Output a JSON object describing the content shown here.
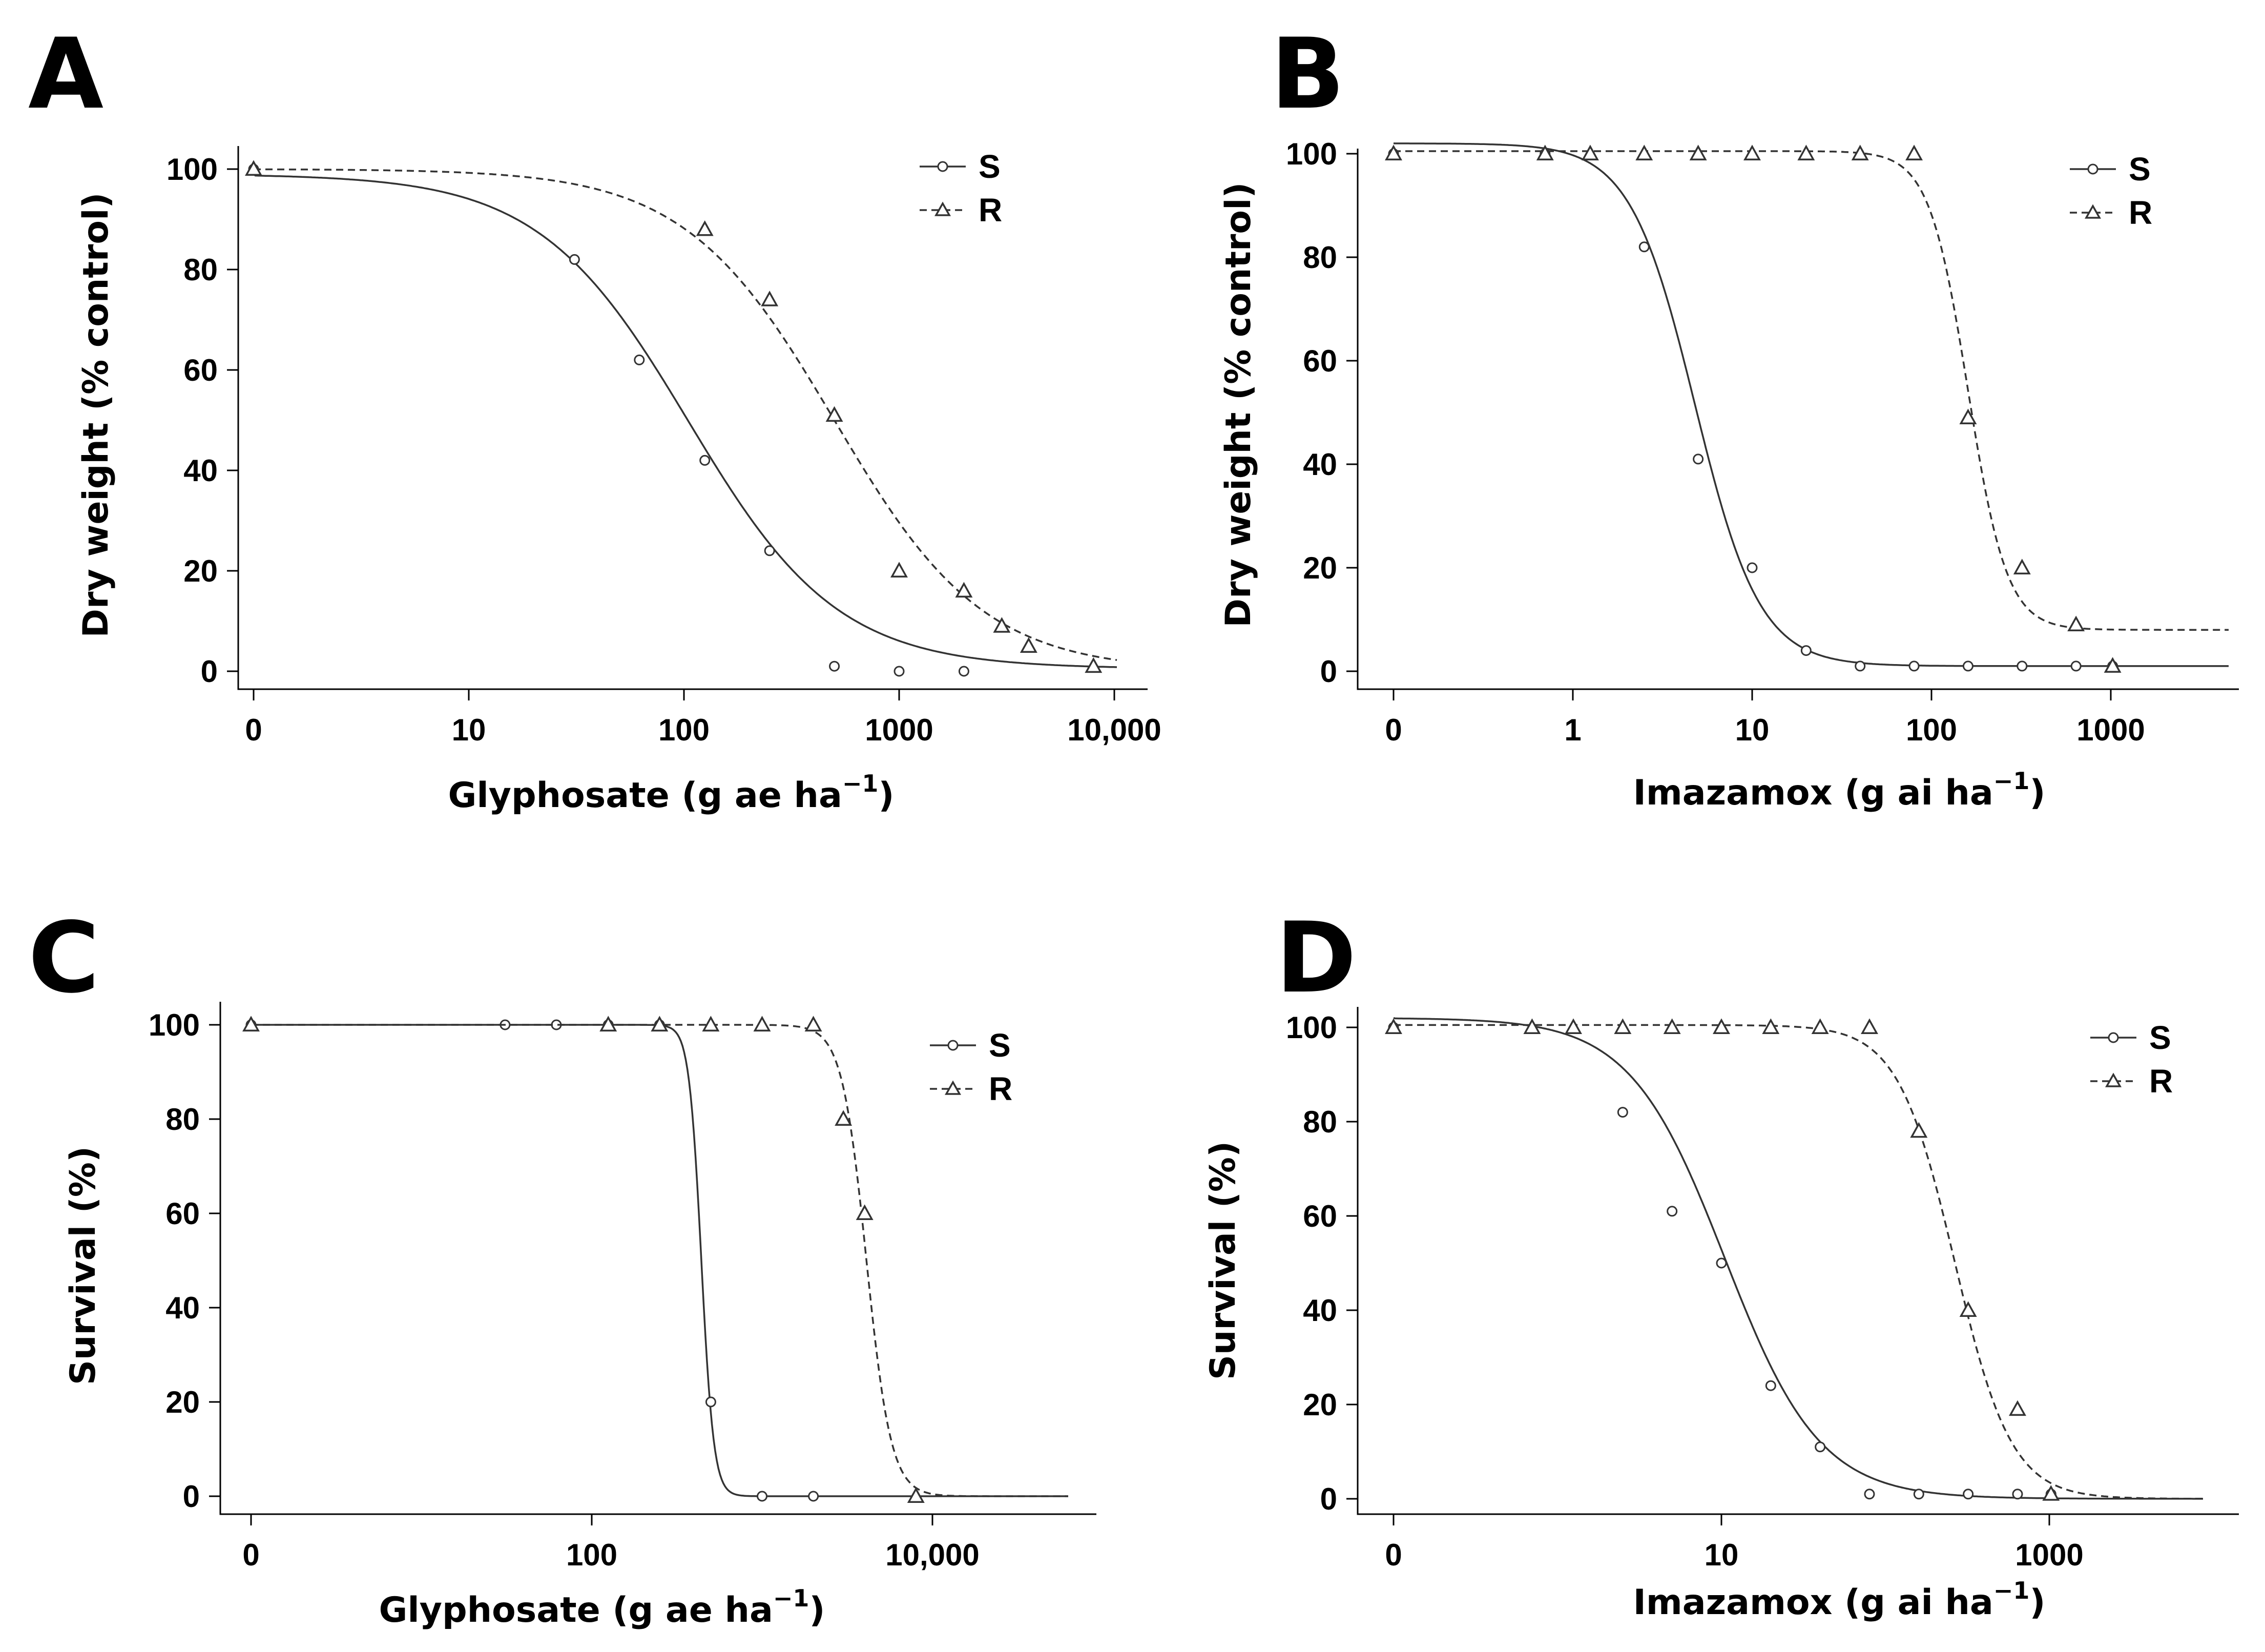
{
  "chart_data": [
    {
      "type": "line",
      "panel": "A",
      "xlabel": "Glyphosate (g ae ha",
      "xlabel_sup": "−1",
      "xlabel_end": ")",
      "ylabel": "Dry weight (% control)",
      "x_scale": "log-with-zero",
      "xticks": [
        {
          "value": 0,
          "label": "0"
        },
        {
          "value": 10,
          "label": "10"
        },
        {
          "value": 100,
          "label": "100"
        },
        {
          "value": 1000,
          "label": "1000"
        },
        {
          "value": 10000,
          "label": "10,000"
        }
      ],
      "xlim": [
        0,
        16000
      ],
      "ylim": [
        -3,
        104
      ],
      "yticks": [
        0,
        20,
        40,
        60,
        80,
        100
      ],
      "legend": [
        "S",
        "R"
      ],
      "legend_position": "top-right",
      "series": [
        {
          "name": "S",
          "marker": "circle",
          "line": "solid",
          "points": [
            [
              0,
              100
            ],
            [
              31,
              82
            ],
            [
              62,
              62
            ],
            [
              125,
              42
            ],
            [
              250,
              24
            ],
            [
              500,
              1
            ],
            [
              1000,
              0
            ],
            [
              2000,
              0
            ]
          ],
          "curve": {
            "top": 99,
            "bottom": 0.5,
            "ed50": 105,
            "slope": 1.25
          }
        },
        {
          "name": "R",
          "marker": "triangle",
          "line": "dashed",
          "points": [
            [
              0,
              100
            ],
            [
              125,
              88
            ],
            [
              250,
              74
            ],
            [
              500,
              51
            ],
            [
              1000,
              20
            ],
            [
              2000,
              16
            ],
            [
              3000,
              9
            ],
            [
              4000,
              5
            ],
            [
              8000,
              1
            ]
          ],
          "curve": {
            "top": 100,
            "bottom": 0,
            "ed50": 500,
            "slope": 1.25
          }
        }
      ]
    },
    {
      "type": "line",
      "panel": "B",
      "xlabel": "Imazamox (g ai ha",
      "xlabel_sup": "−1",
      "xlabel_end": ")",
      "ylabel": "Dry weight (% control)",
      "x_scale": "log-with-zero",
      "xticks": [
        {
          "value": 0,
          "label": "0"
        },
        {
          "value": 1,
          "label": "1"
        },
        {
          "value": 10,
          "label": "10"
        },
        {
          "value": 100,
          "label": "100"
        },
        {
          "value": 1000,
          "label": "1000"
        }
      ],
      "xlim": [
        0,
        5000
      ],
      "ylim": [
        -3,
        104
      ],
      "yticks": [
        0,
        20,
        40,
        60,
        80,
        100
      ],
      "legend": [
        "S",
        "R"
      ],
      "legend_position": "top-right",
      "series": [
        {
          "name": "S",
          "marker": "circle",
          "line": "solid",
          "points": [
            [
              0,
              100
            ],
            [
              0.7,
              100
            ],
            [
              2.5,
              82
            ],
            [
              5,
              41
            ],
            [
              10,
              20
            ],
            [
              20,
              4
            ],
            [
              40,
              1
            ],
            [
              80,
              1
            ],
            [
              160,
              1
            ],
            [
              320,
              1
            ],
            [
              640,
              1
            ],
            [
              1024,
              1
            ]
          ],
          "curve": {
            "top": 102,
            "bottom": 1,
            "ed50": 4.8,
            "slope": 2.4
          }
        },
        {
          "name": "R",
          "marker": "triangle",
          "line": "dashed",
          "points": [
            [
              0,
              100
            ],
            [
              0.7,
              100
            ],
            [
              1.25,
              100
            ],
            [
              2.5,
              100
            ],
            [
              5,
              100
            ],
            [
              10,
              100
            ],
            [
              20,
              100
            ],
            [
              40,
              100
            ],
            [
              80,
              100
            ],
            [
              160,
              49
            ],
            [
              320,
              20
            ],
            [
              640,
              9
            ],
            [
              1024,
              1
            ]
          ],
          "curve": {
            "top": 100.5,
            "bottom": 8,
            "ed50": 160,
            "slope": 4
          }
        }
      ]
    },
    {
      "type": "line",
      "panel": "C",
      "xlabel": "Glyphosate (g ae ha",
      "xlabel_sup": "−1",
      "xlabel_end": ")",
      "ylabel": "Survival (%)",
      "x_scale": "log-with-zero",
      "xticks": [
        {
          "value": 0,
          "label": "0"
        },
        {
          "value": 100,
          "label": "100"
        },
        {
          "value": 10000,
          "label": "10,000"
        }
      ],
      "xlim": [
        0,
        80000
      ],
      "ylim": [
        -3,
        104
      ],
      "yticks": [
        0,
        20,
        40,
        60,
        80,
        100
      ],
      "legend": [
        "S",
        "R"
      ],
      "legend_position": "top-right",
      "series": [
        {
          "name": "S",
          "marker": "circle",
          "line": "solid",
          "points": [
            [
              0,
              100
            ],
            [
              31,
              100
            ],
            [
              62,
              100
            ],
            [
              125,
              100
            ],
            [
              250,
              100
            ],
            [
              500,
              20
            ],
            [
              1000,
              0
            ],
            [
              2000,
              0
            ]
          ],
          "curve": {
            "top": 100,
            "bottom": 0,
            "ed50": 440,
            "slope": 12
          }
        },
        {
          "name": "R",
          "marker": "triangle",
          "line": "dashed",
          "points": [
            [
              0,
              100
            ],
            [
              125,
              100
            ],
            [
              250,
              100
            ],
            [
              500,
              100
            ],
            [
              1000,
              100
            ],
            [
              2000,
              100
            ],
            [
              3000,
              80
            ],
            [
              4000,
              60
            ],
            [
              8000,
              0
            ]
          ],
          "curve": {
            "top": 100,
            "bottom": 0,
            "ed50": 4100,
            "slope": 6
          }
        }
      ]
    },
    {
      "type": "line",
      "panel": "D",
      "xlabel": "Imazamox  (g ai ha",
      "xlabel_sup": "−1",
      "xlabel_end": ")",
      "ylabel": "Survival (%)",
      "x_scale": "log-with-zero",
      "xticks": [
        {
          "value": 0,
          "label": "0"
        },
        {
          "value": 10,
          "label": "10"
        },
        {
          "value": 1000,
          "label": "1000"
        }
      ],
      "xlim": [
        0,
        10000
      ],
      "ylim": [
        -3,
        104
      ],
      "yticks": [
        0,
        20,
        40,
        60,
        80,
        100
      ],
      "legend": [
        "S",
        "R"
      ],
      "legend_position": "top-right",
      "series": [
        {
          "name": "S",
          "marker": "circle",
          "line": "solid",
          "points": [
            [
              0,
              100
            ],
            [
              2.5,
              82
            ],
            [
              5,
              61
            ],
            [
              10,
              50
            ],
            [
              20,
              24
            ],
            [
              40,
              11
            ],
            [
              80,
              1
            ],
            [
              160,
              1
            ],
            [
              320,
              1
            ],
            [
              640,
              1
            ],
            [
              1024,
              1
            ]
          ],
          "curve": {
            "top": 102,
            "bottom": 0,
            "ed50": 10.5,
            "slope": 1.5
          }
        },
        {
          "name": "R",
          "marker": "triangle",
          "line": "dashed",
          "points": [
            [
              0,
              100
            ],
            [
              0.7,
              100
            ],
            [
              1.25,
              100
            ],
            [
              2.5,
              100
            ],
            [
              5,
              100
            ],
            [
              10,
              100
            ],
            [
              20,
              100
            ],
            [
              40,
              100
            ],
            [
              80,
              100
            ],
            [
              160,
              78
            ],
            [
              320,
              40
            ],
            [
              640,
              19
            ],
            [
              1024,
              1
            ]
          ],
          "curve": {
            "top": 100.5,
            "bottom": 0,
            "ed50": 265,
            "slope": 2.5
          }
        }
      ]
    }
  ]
}
